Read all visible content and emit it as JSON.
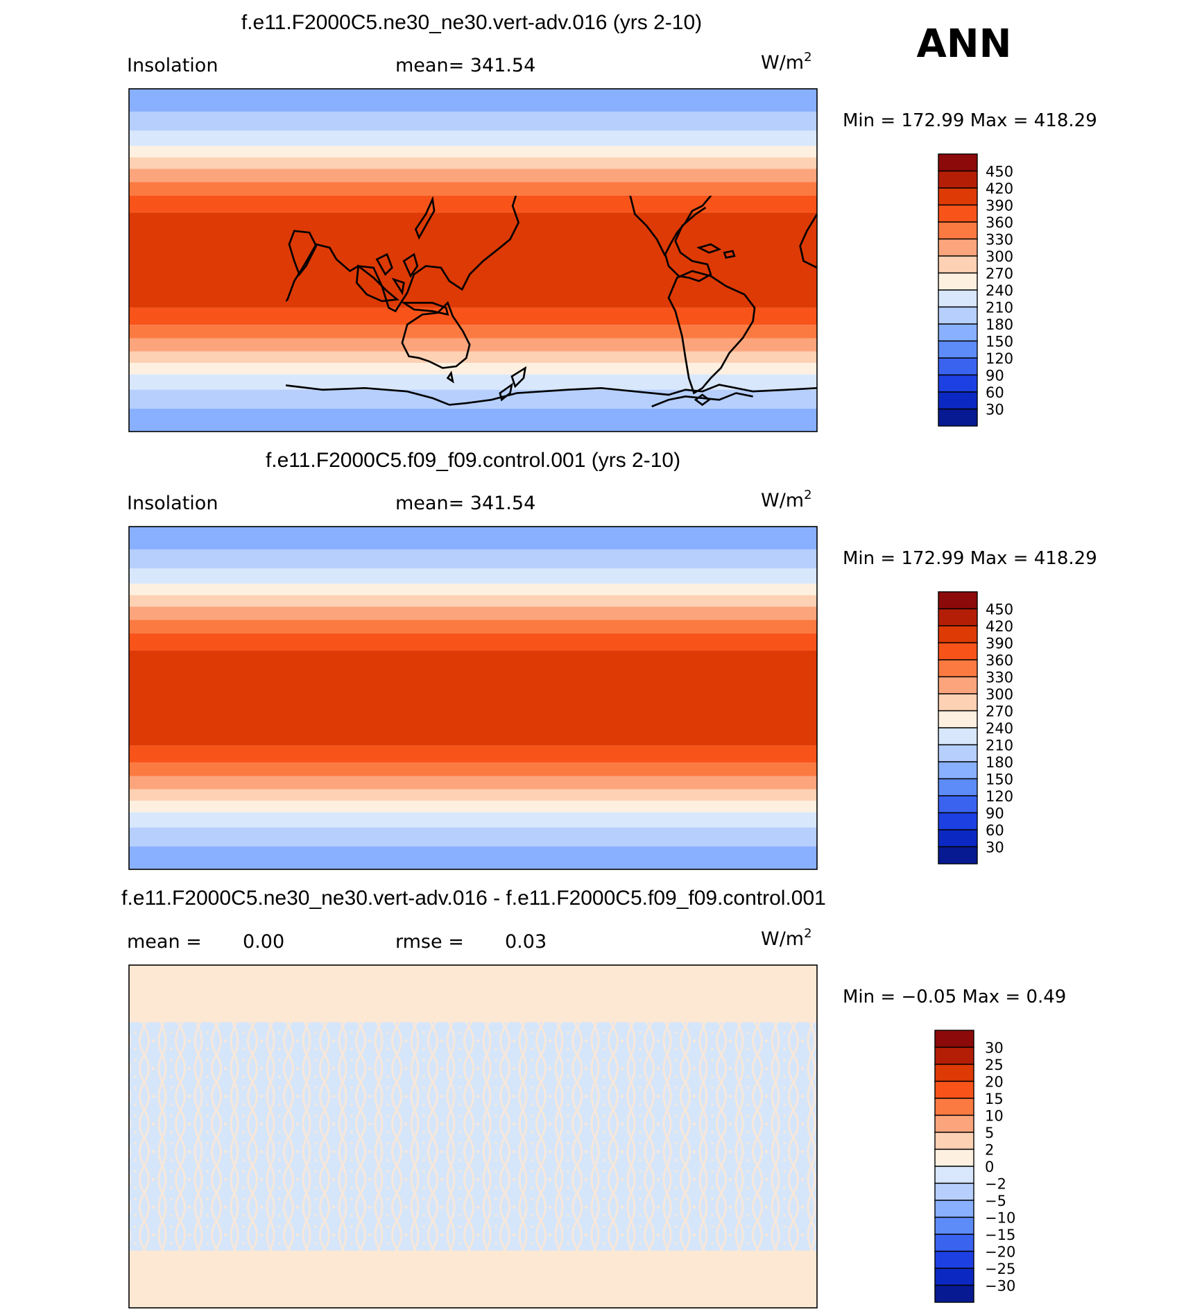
{
  "season_label": "ANN",
  "colors": {
    "land_line": "#000000",
    "insolation_bands": [
      "#7fa8ff",
      "#b6cffd",
      "#d8e7fb",
      "#fdeedd",
      "#fdd1b4",
      "#fdaa86",
      "#fc8f5c",
      "#fa6b2c",
      "#e13a03"
    ],
    "diff_positive": "#fde8d4",
    "diff_negative": "#d6e6fa"
  },
  "chart_data": [
    {
      "type": "heatmap",
      "title": "f.e11.F2000C5.ne30_ne30.vert-adv.016 (yrs 2-10)",
      "left_label": "Insolation",
      "stat_text": "mean= 341.54",
      "units_base": "W/m",
      "units_exp": "2",
      "min_max_text": "Min = 172.99 Max = 418.29",
      "min": 172.99,
      "max": 418.29,
      "mean": 341.54,
      "lat_range": [
        -90,
        90
      ],
      "lon_range": [
        0,
        360
      ],
      "colorbar": {
        "labels": [
          "450",
          "420",
          "390",
          "360",
          "330",
          "300",
          "270",
          "240",
          "210",
          "180",
          "150",
          "120",
          "90",
          "60",
          "30"
        ],
        "colors": [
          "#8c0a0a",
          "#b51e06",
          "#dd3a05",
          "#f8541a",
          "#fb7a42",
          "#fca57d",
          "#fdd1b4",
          "#fdf0e0",
          "#d8e7fb",
          "#b6cffd",
          "#88b0fe",
          "#5d8cf8",
          "#3a63f0",
          "#1d40e2",
          "#0b29c2",
          "#071a92"
        ]
      },
      "zonal_bands": [
        {
          "lat": [
            78,
            90
          ],
          "value": 175
        },
        {
          "lat": [
            68,
            78
          ],
          "value": 195
        },
        {
          "lat": [
            60,
            68
          ],
          "value": 225
        },
        {
          "lat": [
            54,
            60
          ],
          "value": 255
        },
        {
          "lat": [
            48,
            54
          ],
          "value": 285
        },
        {
          "lat": [
            41,
            48
          ],
          "value": 315
        },
        {
          "lat": [
            34,
            41
          ],
          "value": 345
        },
        {
          "lat": [
            25,
            34
          ],
          "value": 375
        },
        {
          "lat": [
            -25,
            25
          ],
          "value": 405
        },
        {
          "lat": [
            -34,
            -25
          ],
          "value": 375
        },
        {
          "lat": [
            -41,
            -34
          ],
          "value": 345
        },
        {
          "lat": [
            -48,
            -41
          ],
          "value": 315
        },
        {
          "lat": [
            -54,
            -48
          ],
          "value": 285
        },
        {
          "lat": [
            -60,
            -54
          ],
          "value": 255
        },
        {
          "lat": [
            -68,
            -60
          ],
          "value": 225
        },
        {
          "lat": [
            -78,
            -68
          ],
          "value": 195
        },
        {
          "lat": [
            -90,
            -78
          ],
          "value": 175
        }
      ]
    },
    {
      "type": "heatmap",
      "title": "f.e11.F2000C5.f09_f09.control.001 (yrs 2-10)",
      "left_label": "Insolation",
      "stat_text": "mean= 341.54",
      "units_base": "W/m",
      "units_exp": "2",
      "min_max_text": "Min = 172.99 Max = 418.29",
      "min": 172.99,
      "max": 418.29,
      "mean": 341.54,
      "lat_range": [
        -90,
        90
      ],
      "lon_range": [
        0,
        360
      ],
      "colorbar": {
        "labels": [
          "450",
          "420",
          "390",
          "360",
          "330",
          "300",
          "270",
          "240",
          "210",
          "180",
          "150",
          "120",
          "90",
          "60",
          "30"
        ],
        "colors": [
          "#8c0a0a",
          "#b51e06",
          "#dd3a05",
          "#f8541a",
          "#fb7a42",
          "#fca57d",
          "#fdd1b4",
          "#fdf0e0",
          "#d8e7fb",
          "#b6cffd",
          "#88b0fe",
          "#5d8cf8",
          "#3a63f0",
          "#1d40e2",
          "#0b29c2",
          "#071a92"
        ]
      },
      "zonal_bands": [
        {
          "lat": [
            78,
            90
          ],
          "value": 175
        },
        {
          "lat": [
            68,
            78
          ],
          "value": 195
        },
        {
          "lat": [
            60,
            68
          ],
          "value": 225
        },
        {
          "lat": [
            54,
            60
          ],
          "value": 255
        },
        {
          "lat": [
            48,
            54
          ],
          "value": 285
        },
        {
          "lat": [
            41,
            48
          ],
          "value": 315
        },
        {
          "lat": [
            34,
            41
          ],
          "value": 345
        },
        {
          "lat": [
            25,
            34
          ],
          "value": 375
        },
        {
          "lat": [
            -25,
            25
          ],
          "value": 405
        },
        {
          "lat": [
            -34,
            -25
          ],
          "value": 375
        },
        {
          "lat": [
            -41,
            -34
          ],
          "value": 345
        },
        {
          "lat": [
            -48,
            -41
          ],
          "value": 315
        },
        {
          "lat": [
            -54,
            -48
          ],
          "value": 285
        },
        {
          "lat": [
            -60,
            -54
          ],
          "value": 255
        },
        {
          "lat": [
            -68,
            -60
          ],
          "value": 225
        },
        {
          "lat": [
            -78,
            -68
          ],
          "value": 195
        },
        {
          "lat": [
            -90,
            -78
          ],
          "value": 175
        }
      ]
    },
    {
      "type": "heatmap",
      "title": "f.e11.F2000C5.ne30_ne30.vert-adv.016 - f.e11.F2000C5.f09_f09.control.001",
      "left_label": "mean =",
      "left_value": "0.00",
      "stat_label": "rmse =",
      "stat_value": "0.03",
      "units_base": "W/m",
      "units_exp": "2",
      "min_max_text": "Min = −0.05 Max = 0.49",
      "min": -0.05,
      "max": 0.49,
      "mean": 0.0,
      "rmse": 0.03,
      "lat_range": [
        -90,
        90
      ],
      "lon_range": [
        0,
        360
      ],
      "colorbar": {
        "labels": [
          "30",
          "25",
          "20",
          "15",
          "10",
          "5",
          "2",
          "0",
          "−2",
          "−5",
          "−10",
          "−15",
          "−20",
          "−25",
          "−30"
        ],
        "colors": [
          "#8c0a0a",
          "#b51e06",
          "#dd3a05",
          "#f8541a",
          "#fb7a42",
          "#fca57d",
          "#fdd1b4",
          "#fdf0e0",
          "#d8e7fb",
          "#b6cffd",
          "#88b0fe",
          "#5d8cf8",
          "#3a63f0",
          "#1d40e2",
          "#0b29c2",
          "#071a92"
        ]
      },
      "zonal_bands": [
        {
          "lat": [
            60,
            90
          ],
          "value": 0.02
        },
        {
          "lat": [
            -60,
            60
          ],
          "value": -0.01
        },
        {
          "lat": [
            -90,
            -60
          ],
          "value": 0.02
        }
      ]
    }
  ]
}
